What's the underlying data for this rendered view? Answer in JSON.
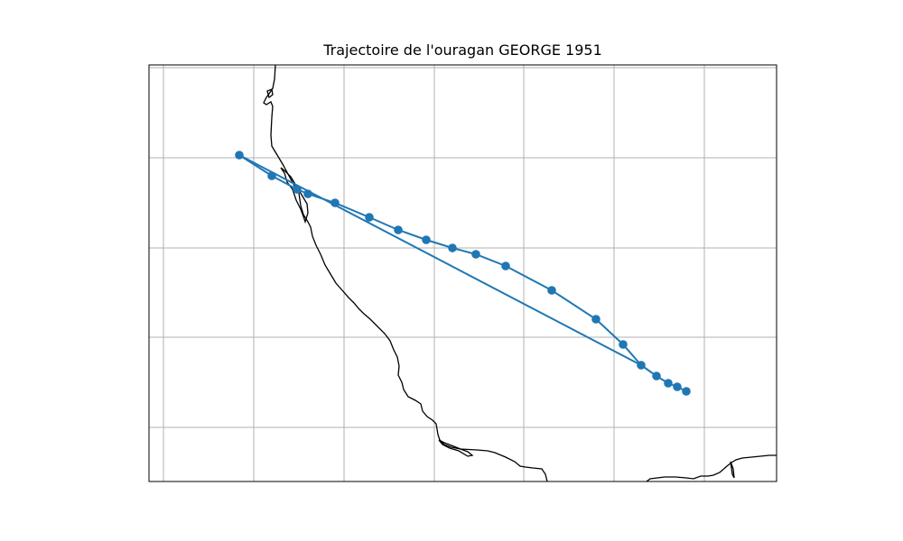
{
  "chart_data": {
    "type": "map-track",
    "title": "Trajectoire de l'ouragan GEORGE 1951",
    "grid": true,
    "track_color": "#1f77b4",
    "coastline_color": "#000000",
    "grid_color": "#b0b0b0",
    "track_points": [
      {
        "index": 0
      },
      {
        "index": 1
      },
      {
        "index": 2
      },
      {
        "index": 3
      },
      {
        "index": 4
      },
      {
        "index": 5
      },
      {
        "index": 6
      },
      {
        "index": 7
      },
      {
        "index": 8
      },
      {
        "index": 9
      },
      {
        "index": 10
      },
      {
        "index": 11
      },
      {
        "index": 12
      },
      {
        "index": 13
      },
      {
        "index": 14
      },
      {
        "index": 15
      },
      {
        "index": 16
      },
      {
        "index": 17
      },
      {
        "index": 18
      }
    ]
  }
}
